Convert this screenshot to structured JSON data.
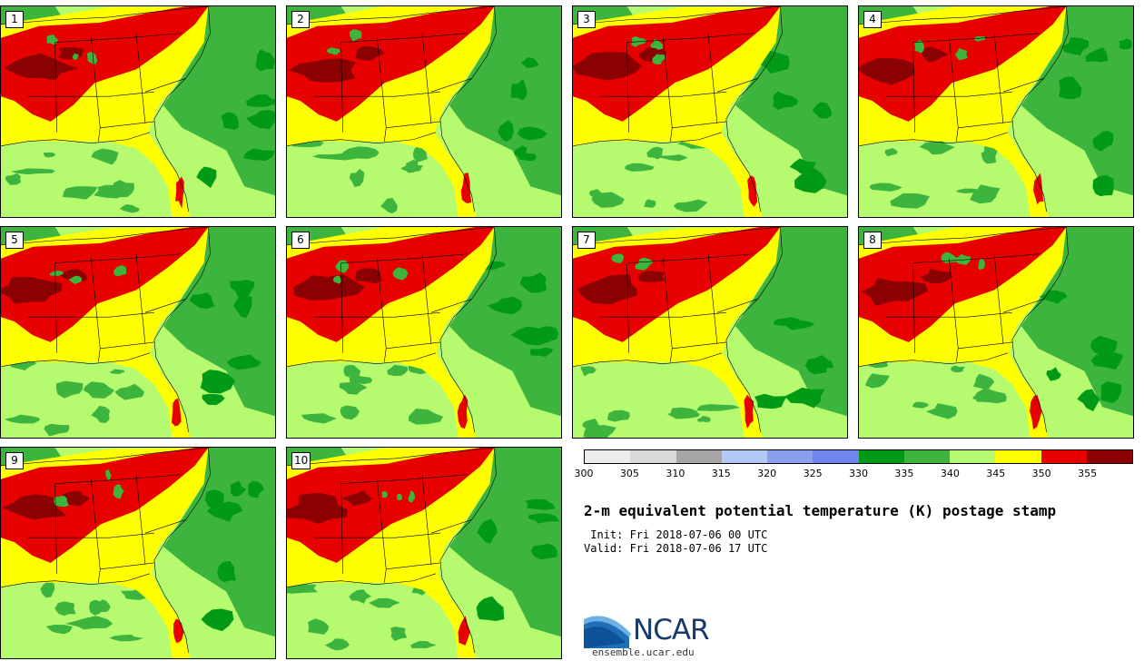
{
  "figure": {
    "title": "2-m equivalent potential temperature (K) postage stamp",
    "init": " Init: Fri 2018-07-06 00 UTC",
    "valid": "Valid: Fri 2018-07-06 17 UTC",
    "site": "ensemble.ucar.edu",
    "logo_text": "NCAR"
  },
  "members": [
    "1",
    "2",
    "3",
    "4",
    "5",
    "6",
    "7",
    "8",
    "9",
    "10"
  ],
  "colorbar": {
    "ticks": [
      "300",
      "305",
      "310",
      "315",
      "320",
      "325",
      "330",
      "335",
      "340",
      "345",
      "350",
      "355"
    ],
    "colors": [
      "#ececec",
      "#d9d9d9",
      "#a6a6a6",
      "#b4c8f5",
      "#8aa0ef",
      "#6f86ec",
      "#009a16",
      "#3db43d",
      "#b6fa70",
      "#ffff00",
      "#e60000",
      "#8b0000"
    ]
  },
  "map_colors": {
    "bg": "#b6fa70",
    "dark_green": "#009a16",
    "green": "#3db43d",
    "light_green": "#b6fa70",
    "yellow": "#ffff00",
    "red": "#e60000",
    "dark_red": "#8b0000",
    "border": "#000000"
  }
}
